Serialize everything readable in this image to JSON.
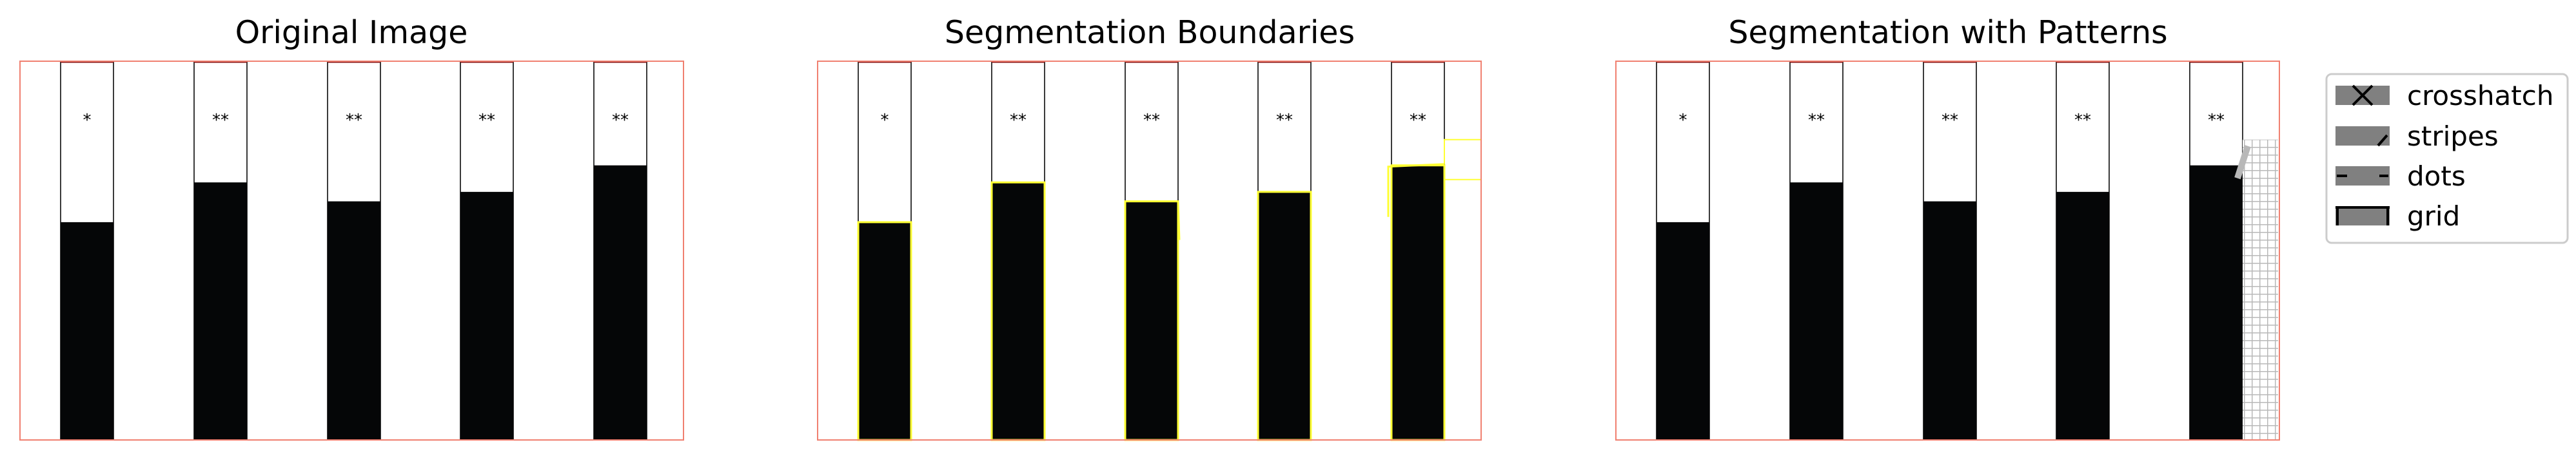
{
  "chart_data": [
    {
      "type": "bar",
      "title": "Original Image",
      "values": [
        0.575,
        0.68,
        0.63,
        0.655,
        0.725
      ],
      "bar_tops": [
        1,
        1,
        1,
        1,
        1
      ],
      "labels": [
        "*",
        "**",
        "**",
        "**",
        "**"
      ],
      "colors": {
        "bar": "#050607",
        "frame": "#f08070",
        "bar_outline": "#000000"
      }
    },
    {
      "type": "bar",
      "title": "Segmentation Boundaries",
      "values": [
        0.575,
        0.68,
        0.63,
        0.655,
        0.725
      ],
      "bar_tops": [
        1,
        1,
        1,
        1,
        1
      ],
      "labels": [
        "*",
        "**",
        "**",
        "**",
        "**"
      ],
      "colors": {
        "bar": "#050607",
        "frame": "#f08070",
        "boundary": "#ffff33"
      }
    },
    {
      "type": "bar",
      "title": "Segmentation with Patterns",
      "values": [
        0.575,
        0.68,
        0.63,
        0.655,
        0.725
      ],
      "bar_tops": [
        1,
        1,
        1,
        1,
        1
      ],
      "labels": [
        "*",
        "**",
        "**",
        "**",
        "**"
      ],
      "colors": {
        "bar": "#050607",
        "frame": "#f08070",
        "pattern": "#b8b8b8"
      }
    }
  ],
  "legend": {
    "placement": "right",
    "items": [
      {
        "label": "crosshatch",
        "pattern": "crosshatch"
      },
      {
        "label": "stripes",
        "pattern": "stripes"
      },
      {
        "label": "dots",
        "pattern": "dots"
      },
      {
        "label": "grid",
        "pattern": "grid"
      }
    ]
  }
}
